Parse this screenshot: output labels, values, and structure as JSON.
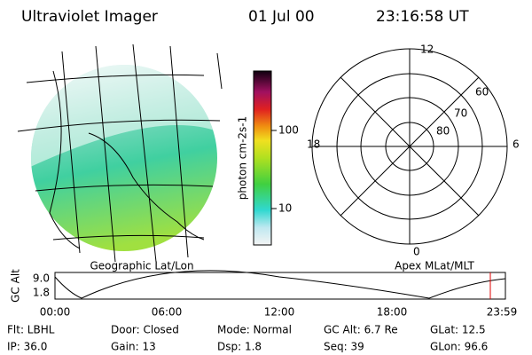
{
  "header": {
    "title": "Ultraviolet Imager",
    "date": "01 Jul 00",
    "time": "23:16:58 UT"
  },
  "geo_panel": {
    "label": "Geographic Lat/Lon"
  },
  "colorbar": {
    "label": "photon cm-2s-1",
    "ticks": [
      "100",
      "10"
    ]
  },
  "polar_panel": {
    "label": "Apex MLat/MLT",
    "mlt_labels": [
      "12",
      "18",
      "6",
      "0"
    ],
    "mlat_labels": [
      "60",
      "70",
      "80"
    ]
  },
  "altitude_plot": {
    "ylabel": "GC Alt",
    "yticks": [
      "9.0",
      "1.8"
    ],
    "xticks": [
      "00:00",
      "06:00",
      "12:00",
      "18:00",
      "23:59"
    ]
  },
  "footer": {
    "rows": [
      [
        "Flt: LBHL",
        "Door: Closed",
        "Mode: Normal",
        "GC Alt: 6.7 Re",
        "GLat: 12.5"
      ],
      [
        "IP: 36.0",
        "Gain: 13",
        "Dsp: 1.8",
        "Seq: 39",
        "GLon: 96.6"
      ]
    ]
  }
}
